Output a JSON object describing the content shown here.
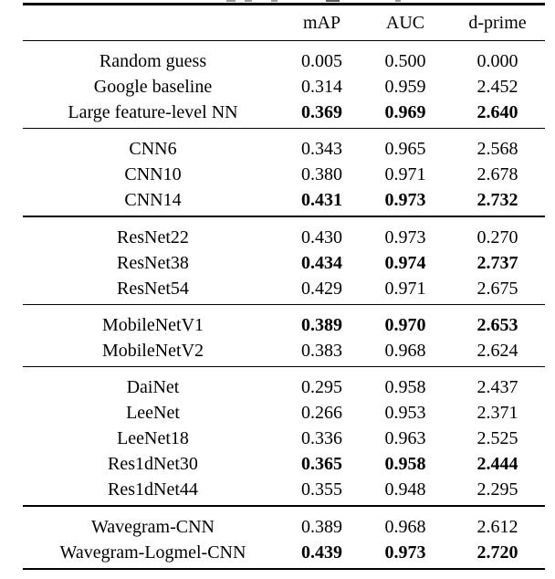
{
  "page": {
    "background": "#ffffff",
    "text_color": "#000000",
    "rule_color": "#000000"
  },
  "table": {
    "columns": [
      "mAP",
      "AUC",
      "d-prime"
    ],
    "groups": [
      {
        "rows": [
          {
            "label": "Random guess",
            "values": [
              "0.005",
              "0.500",
              "0.000"
            ],
            "bold": false
          },
          {
            "label": "Google baseline",
            "values": [
              "0.314",
              "0.959",
              "2.452"
            ],
            "bold": false
          },
          {
            "label": "Large feature-level NN",
            "values": [
              "0.369",
              "0.969",
              "2.640"
            ],
            "bold": true
          }
        ]
      },
      {
        "rows": [
          {
            "label": "CNN6",
            "values": [
              "0.343",
              "0.965",
              "2.568"
            ],
            "bold": false
          },
          {
            "label": "CNN10",
            "values": [
              "0.380",
              "0.971",
              "2.678"
            ],
            "bold": false
          },
          {
            "label": "CNN14",
            "values": [
              "0.431",
              "0.973",
              "2.732"
            ],
            "bold": true
          }
        ]
      },
      {
        "rows": [
          {
            "label": "ResNet22",
            "values": [
              "0.430",
              "0.973",
              "0.270"
            ],
            "bold": false
          },
          {
            "label": "ResNet38",
            "values": [
              "0.434",
              "0.974",
              "2.737"
            ],
            "bold": true
          },
          {
            "label": "ResNet54",
            "values": [
              "0.429",
              "0.971",
              "2.675"
            ],
            "bold": false
          }
        ]
      },
      {
        "rows": [
          {
            "label": "MobileNetV1",
            "values": [
              "0.389",
              "0.970",
              "2.653"
            ],
            "bold": true
          },
          {
            "label": "MobileNetV2",
            "values": [
              "0.383",
              "0.968",
              "2.624"
            ],
            "bold": false
          }
        ]
      },
      {
        "rows": [
          {
            "label": "DaiNet",
            "values": [
              "0.295",
              "0.958",
              "2.437"
            ],
            "bold": false
          },
          {
            "label": "LeeNet",
            "values": [
              "0.266",
              "0.953",
              "2.371"
            ],
            "bold": false
          },
          {
            "label": "LeeNet18",
            "values": [
              "0.336",
              "0.963",
              "2.525"
            ],
            "bold": false
          },
          {
            "label": "Res1dNet30",
            "values": [
              "0.365",
              "0.958",
              "2.444"
            ],
            "bold": true
          },
          {
            "label": "Res1dNet44",
            "values": [
              "0.355",
              "0.948",
              "2.295"
            ],
            "bold": false
          }
        ]
      },
      {
        "rows": [
          {
            "label": "Wavegram-CNN",
            "values": [
              "0.389",
              "0.968",
              "2.612"
            ],
            "bold": false
          },
          {
            "label": "Wavegram-Logmel-CNN",
            "values": [
              "0.439",
              "0.973",
              "2.720"
            ],
            "bold": true
          }
        ]
      }
    ]
  }
}
